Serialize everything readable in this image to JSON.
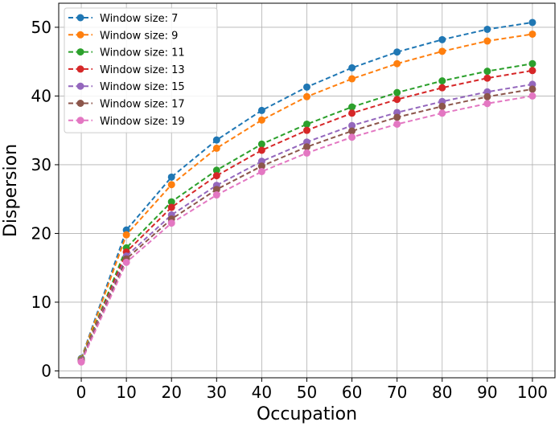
{
  "chart_data": {
    "type": "line",
    "title": "",
    "xlabel": "Occupation",
    "ylabel": "Dispersion",
    "x": [
      0,
      10,
      20,
      30,
      40,
      50,
      60,
      70,
      80,
      90,
      100
    ],
    "xlim": [
      -5,
      105
    ],
    "ylim": [
      -1,
      53.5
    ],
    "xticks": [
      "0",
      "10",
      "20",
      "30",
      "40",
      "50",
      "60",
      "70",
      "80",
      "90",
      "100"
    ],
    "yticks": [
      "0",
      "10",
      "20",
      "30",
      "40",
      "50"
    ],
    "grid": true,
    "legend_position": "top-left",
    "line_style": "dashed",
    "marker": "circle-with-error-bars",
    "series": [
      {
        "name": "Window size: 7",
        "color": "#1f77b4",
        "values": [
          1.8,
          20.5,
          28.2,
          33.6,
          37.9,
          41.3,
          44.1,
          46.4,
          48.2,
          49.7,
          50.7
        ]
      },
      {
        "name": "Window size: 9",
        "color": "#ff7f0e",
        "values": [
          1.7,
          19.8,
          27.1,
          32.4,
          36.5,
          39.9,
          42.5,
          44.7,
          46.5,
          48.0,
          49.0
        ]
      },
      {
        "name": "Window size: 11",
        "color": "#2ca02c",
        "values": [
          1.6,
          17.9,
          24.6,
          29.2,
          33.0,
          35.9,
          38.4,
          40.5,
          42.2,
          43.6,
          44.7
        ]
      },
      {
        "name": "Window size: 13",
        "color": "#d62728",
        "values": [
          1.5,
          17.3,
          23.8,
          28.4,
          32.1,
          35.0,
          37.5,
          39.5,
          41.2,
          42.6,
          43.7
        ]
      },
      {
        "name": "Window size: 15",
        "color": "#9467bd",
        "values": [
          1.5,
          16.7,
          22.7,
          27.0,
          30.5,
          33.3,
          35.7,
          37.6,
          39.2,
          40.6,
          41.7
        ]
      },
      {
        "name": "Window size: 17",
        "color": "#8c564b",
        "values": [
          1.4,
          16.3,
          22.1,
          26.4,
          29.8,
          32.6,
          34.9,
          36.9,
          38.5,
          39.9,
          41.0
        ]
      },
      {
        "name": "Window size: 19",
        "color": "#e377c2",
        "values": [
          1.3,
          15.8,
          21.5,
          25.6,
          29.0,
          31.7,
          34.0,
          35.9,
          37.5,
          38.9,
          40.0
        ]
      }
    ]
  }
}
